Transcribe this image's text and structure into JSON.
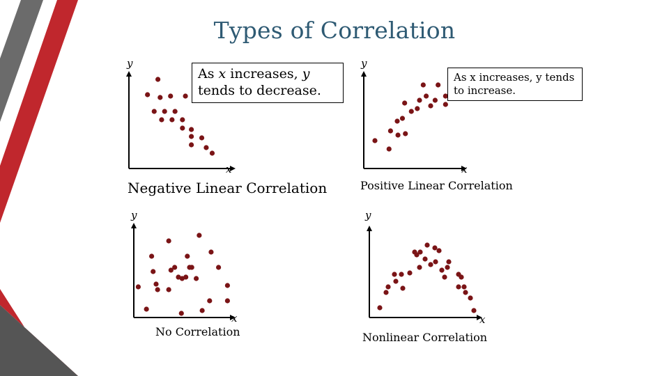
{
  "title": "Types of Correlation",
  "colors": {
    "point": "#7a1416",
    "axis": "#000000",
    "title": "#2e5a73",
    "accent_red": "#c0272d",
    "accent_gray": "#5a5a5a"
  },
  "callouts": {
    "negative": {
      "pre": "As ",
      "x": "x",
      "mid": " increases, ",
      "y": "y",
      "post": " tends to decrease."
    },
    "positive": "As x increases, y tends to increase."
  },
  "chart_data": [
    {
      "type": "scatter",
      "title": "Negative Linear Correlation",
      "xlabel": "x",
      "ylabel": "y",
      "xlim": [
        0,
        150
      ],
      "ylim": [
        0,
        150
      ],
      "points": [
        [
          39,
          128
        ],
        [
          25,
          106
        ],
        [
          42,
          102
        ],
        [
          56,
          104
        ],
        [
          76,
          104
        ],
        [
          34,
          82
        ],
        [
          48,
          82
        ],
        [
          62,
          82
        ],
        [
          44,
          70
        ],
        [
          58,
          70
        ],
        [
          72,
          70
        ],
        [
          72,
          58
        ],
        [
          84,
          56
        ],
        [
          84,
          46
        ],
        [
          98,
          44
        ],
        [
          84,
          34
        ],
        [
          104,
          30
        ],
        [
          112,
          22
        ]
      ]
    },
    {
      "type": "scatter",
      "title": "Positive Linear Correlation",
      "xlabel": "x",
      "ylabel": "y",
      "xlim": [
        0,
        150
      ],
      "ylim": [
        0,
        150
      ],
      "points": [
        [
          15,
          40
        ],
        [
          34,
          28
        ],
        [
          36,
          54
        ],
        [
          45,
          68
        ],
        [
          46,
          48
        ],
        [
          56,
          50
        ],
        [
          52,
          72
        ],
        [
          55,
          94
        ],
        [
          64,
          82
        ],
        [
          75,
          98
        ],
        [
          72,
          86
        ],
        [
          80,
          120
        ],
        [
          84,
          104
        ],
        [
          90,
          90
        ],
        [
          96,
          98
        ],
        [
          100,
          120
        ],
        [
          110,
          104
        ],
        [
          110,
          92
        ],
        [
          116,
          130
        ],
        [
          118,
          116
        ],
        [
          124,
          126
        ]
      ]
    },
    {
      "type": "scatter",
      "title": "No Correlation",
      "xlabel": "x",
      "ylabel": "y",
      "xlim": [
        0,
        150
      ],
      "ylim": [
        0,
        140
      ],
      "points": [
        [
          6,
          44
        ],
        [
          17,
          12
        ],
        [
          24,
          88
        ],
        [
          26,
          66
        ],
        [
          30,
          48
        ],
        [
          32,
          40
        ],
        [
          47,
          110
        ],
        [
          47,
          40
        ],
        [
          50,
          68
        ],
        [
          55,
          72
        ],
        [
          60,
          58
        ],
        [
          65,
          56
        ],
        [
          64,
          6
        ],
        [
          70,
          58
        ],
        [
          72,
          88
        ],
        [
          75,
          72
        ],
        [
          78,
          72
        ],
        [
          84,
          56
        ],
        [
          88,
          118
        ],
        [
          92,
          10
        ],
        [
          102,
          24
        ],
        [
          104,
          94
        ],
        [
          114,
          72
        ],
        [
          126,
          24
        ],
        [
          126,
          46
        ]
      ]
    },
    {
      "type": "scatter",
      "title": "Nonlinear Correlation",
      "xlabel": "x",
      "ylabel": "y",
      "xlim": [
        0,
        160
      ],
      "ylim": [
        0,
        140
      ],
      "points": [
        [
          15,
          14
        ],
        [
          24,
          36
        ],
        [
          27,
          44
        ],
        [
          36,
          62
        ],
        [
          38,
          52
        ],
        [
          46,
          62
        ],
        [
          48,
          42
        ],
        [
          58,
          64
        ],
        [
          65,
          94
        ],
        [
          68,
          90
        ],
        [
          72,
          72
        ],
        [
          73,
          94
        ],
        [
          80,
          84
        ],
        [
          83,
          104
        ],
        [
          88,
          76
        ],
        [
          94,
          100
        ],
        [
          95,
          80
        ],
        [
          100,
          96
        ],
        [
          104,
          68
        ],
        [
          108,
          58
        ],
        [
          112,
          72
        ],
        [
          114,
          80
        ],
        [
          128,
          44
        ],
        [
          128,
          62
        ],
        [
          132,
          58
        ],
        [
          138,
          36
        ],
        [
          136,
          44
        ],
        [
          145,
          28
        ],
        [
          150,
          10
        ]
      ]
    }
  ]
}
